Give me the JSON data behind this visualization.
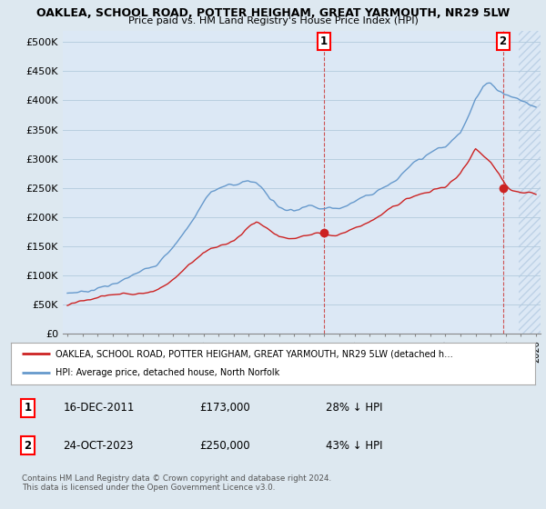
{
  "title_line1": "OAKLEA, SCHOOL ROAD, POTTER HEIGHAM, GREAT YARMOUTH, NR29 5LW",
  "title_line2": "Price paid vs. HM Land Registry's House Price Index (HPI)",
  "xlim_start": 1994.7,
  "xlim_end": 2026.3,
  "ylim_min": 0,
  "ylim_max": 520000,
  "yticks": [
    0,
    50000,
    100000,
    150000,
    200000,
    250000,
    300000,
    350000,
    400000,
    450000,
    500000
  ],
  "ytick_labels": [
    "£0",
    "£50K",
    "£100K",
    "£150K",
    "£200K",
    "£250K",
    "£300K",
    "£350K",
    "£400K",
    "£450K",
    "£500K"
  ],
  "hpi_color": "#6699cc",
  "price_color": "#cc2222",
  "sale1_date": 2011.96,
  "sale1_price": 173000,
  "sale2_date": 2023.81,
  "sale2_price": 250000,
  "background_color": "#dde8f0",
  "plot_bg_color": "#dce8f5",
  "grid_color": "#b8cfe0",
  "legend_text1": "OAKLEA, SCHOOL ROAD, POTTER HEIGHAM, GREAT YARMOUTH, NR29 5LW (detached h…",
  "legend_text2": "HPI: Average price, detached house, North Norfolk",
  "annotation1_date": "16-DEC-2011",
  "annotation1_price": "£173,000",
  "annotation1_pct": "28% ↓ HPI",
  "annotation2_date": "24-OCT-2023",
  "annotation2_price": "£250,000",
  "annotation2_pct": "43% ↓ HPI",
  "footer": "Contains HM Land Registry data © Crown copyright and database right 2024.\nThis data is licensed under the Open Government Licence v3.0.",
  "hatch_color": "#b0c8e0",
  "future_cutoff": 2024.83,
  "hpi_data": {
    "years": [
      1995,
      1995.5,
      1996,
      1996.5,
      1997,
      1997.5,
      1998,
      1998.5,
      1999,
      1999.5,
      2000,
      2000.5,
      2001,
      2001.5,
      2002,
      2002.5,
      2003,
      2003.5,
      2004,
      2004.5,
      2005,
      2005.5,
      2006,
      2006.5,
      2007,
      2007.5,
      2008,
      2008.5,
      2009,
      2009.5,
      2010,
      2010.5,
      2011,
      2011.5,
      2012,
      2012.5,
      2013,
      2013.5,
      2014,
      2014.5,
      2015,
      2015.5,
      2016,
      2016.5,
      2017,
      2017.5,
      2018,
      2018.5,
      2019,
      2019.5,
      2020,
      2020.5,
      2021,
      2021.5,
      2022,
      2022.5,
      2023,
      2023.5,
      2024,
      2024.5,
      2025,
      2025.5,
      2026
    ],
    "values": [
      68000,
      70000,
      73000,
      76000,
      80000,
      85000,
      88000,
      90000,
      95000,
      100000,
      105000,
      115000,
      125000,
      138000,
      152000,
      170000,
      190000,
      210000,
      232000,
      248000,
      255000,
      258000,
      262000,
      265000,
      268000,
      265000,
      255000,
      240000,
      228000,
      225000,
      228000,
      232000,
      236000,
      238000,
      237000,
      238000,
      240000,
      245000,
      252000,
      260000,
      268000,
      276000,
      285000,
      295000,
      305000,
      315000,
      322000,
      328000,
      335000,
      342000,
      345000,
      355000,
      370000,
      400000,
      435000,
      455000,
      460000,
      450000,
      445000,
      440000,
      435000,
      430000,
      425000
    ]
  },
  "price_data": {
    "years": [
      1995,
      1995.5,
      1996,
      1996.5,
      1997,
      1997.5,
      1998,
      1998.5,
      1999,
      1999.5,
      2000,
      2000.5,
      2001,
      2001.5,
      2002,
      2002.5,
      2003,
      2003.5,
      2004,
      2004.5,
      2005,
      2005.5,
      2006,
      2006.5,
      2007,
      2007.5,
      2008,
      2008.5,
      2009,
      2009.5,
      2010,
      2010.5,
      2011,
      2011.5,
      2012,
      2012.5,
      2013,
      2013.5,
      2014,
      2014.5,
      2015,
      2015.5,
      2016,
      2016.5,
      2017,
      2017.5,
      2018,
      2018.5,
      2019,
      2019.5,
      2020,
      2020.5,
      2021,
      2021.5,
      2022,
      2022.5,
      2023,
      2023.5,
      2024,
      2024.5,
      2025,
      2025.5,
      2026
    ],
    "values": [
      48000,
      50000,
      52000,
      54000,
      57000,
      60000,
      62000,
      64000,
      66000,
      68000,
      70000,
      75000,
      80000,
      88000,
      98000,
      110000,
      122000,
      135000,
      148000,
      158000,
      162000,
      165000,
      170000,
      178000,
      190000,
      195000,
      188000,
      178000,
      170000,
      168000,
      170000,
      172000,
      173000,
      175000,
      173000,
      175000,
      178000,
      182000,
      188000,
      196000,
      205000,
      215000,
      225000,
      235000,
      242000,
      248000,
      252000,
      256000,
      258000,
      262000,
      265000,
      272000,
      285000,
      305000,
      325000,
      315000,
      305000,
      285000,
      260000,
      250000,
      245000,
      242000,
      240000
    ]
  }
}
